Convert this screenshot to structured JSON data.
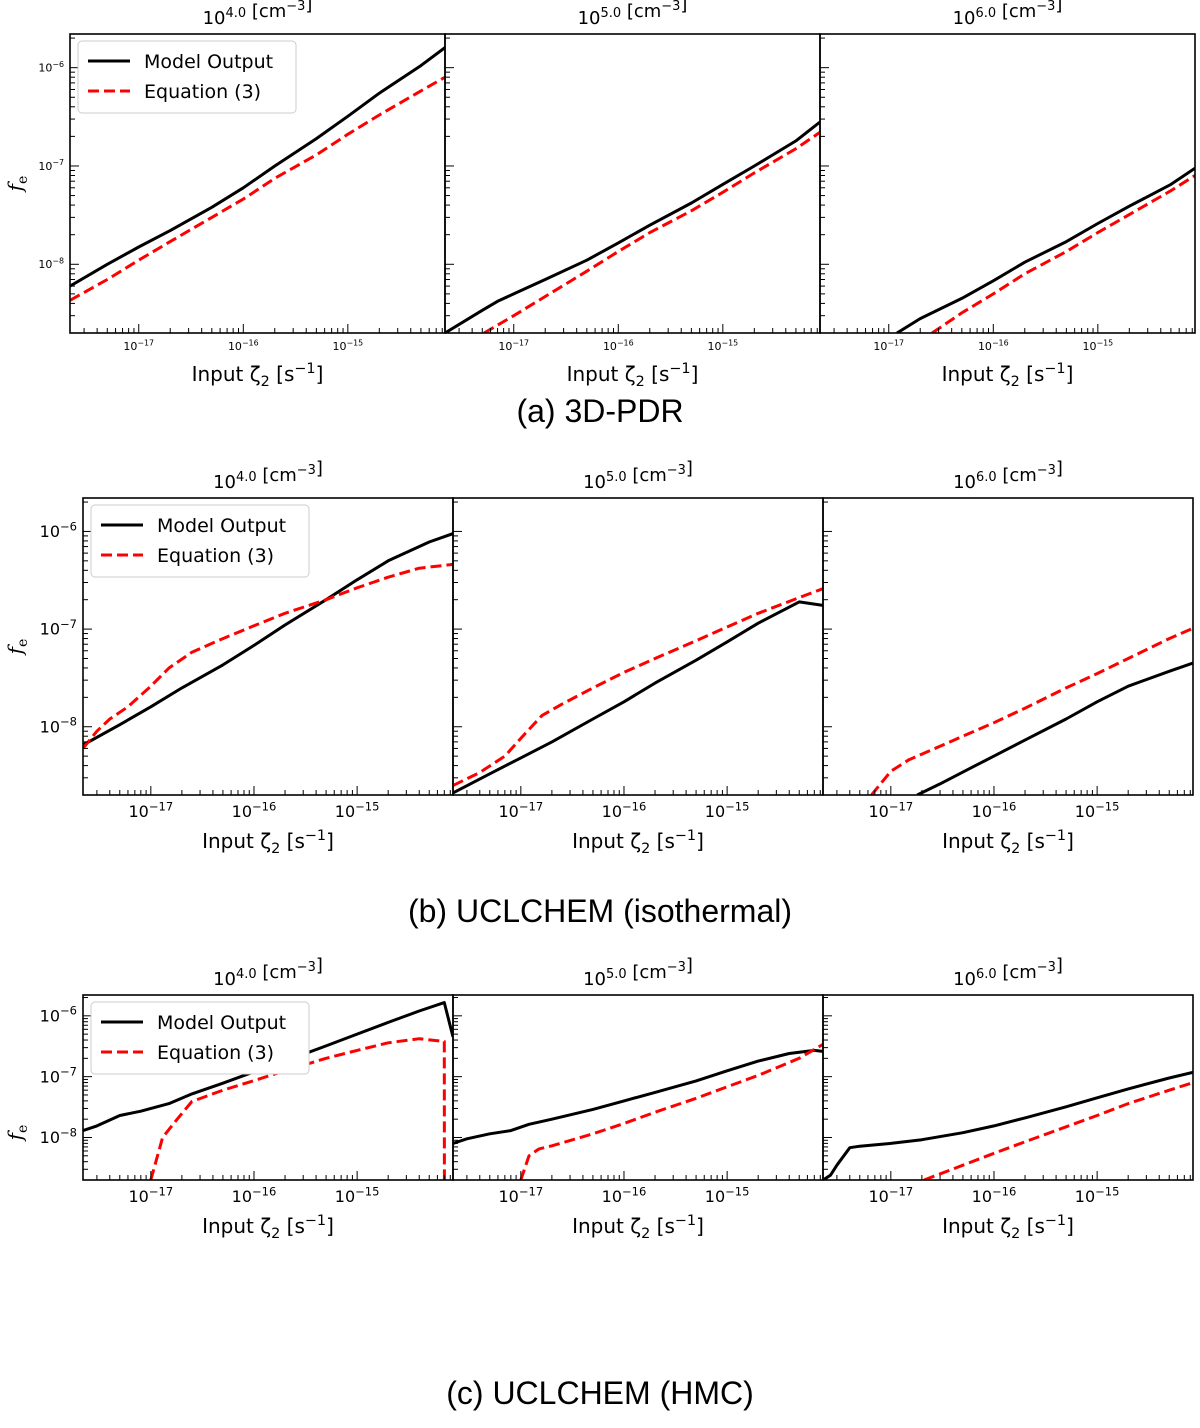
{
  "figure": {
    "captions": [
      "(a) 3D-PDR",
      "(b) UCLCHEM (isothermal)",
      "(c) UCLCHEM (HMC)"
    ]
  },
  "chart_data": [
    {
      "type": "line",
      "group": "(a) 3D-PDR",
      "panels": [
        {
          "title": "10^4.0 [cm^-3]",
          "xlabel": "Input ζ2 [s^-1]",
          "ylabel": "f_e",
          "xscale": "log",
          "yscale": "log",
          "xlim": [
            2.2e-18,
            8.5e-15
          ],
          "ylim": [
            2e-09,
            2.2e-06
          ],
          "x_tick_labels": [
            "10^-17",
            "10^-16",
            "10^-15"
          ],
          "y_tick_labels": [
            "10^-8",
            "10^-7",
            "10^-6"
          ],
          "legend": "upper left",
          "series": [
            {
              "name": "Model Output",
              "color": "#000000",
              "style": "solid",
              "x": [
                2.2e-18,
                5e-18,
                1e-17,
                2e-17,
                5e-17,
                1e-16,
                2e-16,
                5e-16,
                1e-15,
                2e-15,
                5e-15,
                8.5e-15
              ],
              "y": [
                6e-09,
                1e-08,
                1.5e-08,
                2.2e-08,
                3.8e-08,
                6e-08,
                1e-07,
                1.9e-07,
                3.2e-07,
                5.5e-07,
                1.05e-06,
                1.6e-06
              ]
            },
            {
              "name": "Equation (3)",
              "color": "#ff0000",
              "style": "dashed",
              "x": [
                2.2e-18,
                5e-18,
                1e-17,
                2e-17,
                5e-17,
                1e-16,
                2e-16,
                5e-16,
                1e-15,
                2e-15,
                5e-15,
                8.5e-15
              ],
              "y": [
                4.3e-09,
                7e-09,
                1.1e-08,
                1.7e-08,
                3e-08,
                4.6e-08,
                7.5e-08,
                1.3e-07,
                2.1e-07,
                3.3e-07,
                5.8e-07,
                8e-07
              ]
            }
          ]
        },
        {
          "title": "10^5.0 [cm^-3]",
          "xlabel": "Input ζ2 [s^-1]",
          "ylabel": "",
          "xscale": "log",
          "yscale": "log",
          "xlim": [
            2.2e-18,
            8.5e-15
          ],
          "ylim": [
            2e-09,
            2.2e-06
          ],
          "x_tick_labels": [
            "10^-17",
            "10^-16",
            "10^-15"
          ],
          "y_tick_labels": [],
          "legend": "none",
          "series": [
            {
              "name": "Model Output",
              "color": "#000000",
              "style": "solid",
              "x": [
                2.2e-18,
                5e-18,
                7e-18,
                1e-17,
                2e-17,
                5e-17,
                1e-16,
                2e-16,
                5e-16,
                1e-15,
                2e-15,
                5e-15,
                8.5e-15
              ],
              "y": [
                2e-09,
                3.4e-09,
                4.2e-09,
                5e-09,
                7e-09,
                1.1e-08,
                1.65e-08,
                2.5e-08,
                4.2e-08,
                6.5e-08,
                1e-07,
                1.8e-07,
                2.8e-07
              ]
            },
            {
              "name": "Equation (3)",
              "color": "#ff0000",
              "style": "dashed",
              "x": [
                5.2e-18,
                1e-17,
                2e-17,
                5e-17,
                1e-16,
                2e-16,
                5e-16,
                1e-15,
                2e-15,
                5e-15,
                8.5e-15
              ],
              "y": [
                2e-09,
                3e-09,
                4.7e-09,
                8.5e-09,
                1.35e-08,
                2.1e-08,
                3.5e-08,
                5.4e-08,
                8.5e-08,
                1.5e-07,
                2.2e-07
              ]
            }
          ]
        },
        {
          "title": "10^6.0 [cm^-3]",
          "xlabel": "Input ζ2 [s^-1]",
          "ylabel": "",
          "xscale": "log",
          "yscale": "log",
          "xlim": [
            2.2e-18,
            8.5e-15
          ],
          "ylim": [
            2e-09,
            2.2e-06
          ],
          "x_tick_labels": [
            "10^-17",
            "10^-16",
            "10^-15"
          ],
          "y_tick_labels": [],
          "legend": "none",
          "series": [
            {
              "name": "Model Output",
              "color": "#000000",
              "style": "solid",
              "x": [
                1.2e-17,
                2e-17,
                5e-17,
                1e-16,
                2e-16,
                5e-16,
                1e-15,
                2e-15,
                5e-15,
                8.5e-15
              ],
              "y": [
                2e-09,
                2.8e-09,
                4.5e-09,
                6.8e-09,
                1.05e-08,
                1.7e-08,
                2.6e-08,
                3.9e-08,
                6.5e-08,
                9.5e-08
              ]
            },
            {
              "name": "Equation (3)",
              "color": "#ff0000",
              "style": "dashed",
              "x": [
                2.6e-17,
                5e-17,
                1e-16,
                2e-16,
                5e-16,
                1e-15,
                2e-15,
                5e-15,
                8.5e-15
              ],
              "y": [
                2e-09,
                3.2e-09,
                5e-09,
                8e-09,
                1.35e-08,
                2.1e-08,
                3.2e-08,
                5.6e-08,
                8e-08
              ]
            }
          ]
        }
      ]
    },
    {
      "type": "line",
      "group": "(b) UCLCHEM (isothermal)",
      "panels": [
        {
          "title": "10^4.0 [cm^-3]",
          "xlabel": "Input ζ2 [s^-1]",
          "ylabel": "f_e",
          "xscale": "log",
          "yscale": "log",
          "xlim": [
            2.2e-18,
            8.5e-15
          ],
          "ylim": [
            2e-09,
            2.2e-06
          ],
          "x_tick_labels": [
            "10^-17",
            "10^-16",
            "10^-15"
          ],
          "y_tick_labels": [
            "10^-8",
            "10^-7",
            "10^-6"
          ],
          "legend": "upper left",
          "series": [
            {
              "name": "Model Output",
              "color": "#000000",
              "style": "solid",
              "x": [
                2.2e-18,
                5e-18,
                1e-17,
                2e-17,
                5e-17,
                1e-16,
                2e-16,
                5e-16,
                1e-15,
                2e-15,
                5e-15,
                8.5e-15
              ],
              "y": [
                6.5e-09,
                1.05e-08,
                1.6e-08,
                2.5e-08,
                4.3e-08,
                6.8e-08,
                1.1e-07,
                2e-07,
                3.2e-07,
                5e-07,
                7.8e-07,
                9.5e-07
              ]
            },
            {
              "name": "Equation (3)",
              "color": "#ff0000",
              "style": "dashed",
              "x": [
                2.2e-18,
                3e-18,
                4e-18,
                6e-18,
                1e-17,
                1.5e-17,
                2.5e-17,
                5e-17,
                1e-16,
                2e-16,
                5e-16,
                1e-15,
                2e-15,
                4e-15,
                8.5e-15
              ],
              "y": [
                6e-09,
                9e-09,
                1.2e-08,
                1.6e-08,
                2.6e-08,
                4e-08,
                5.8e-08,
                8e-08,
                1.08e-07,
                1.45e-07,
                2e-07,
                2.65e-07,
                3.4e-07,
                4.2e-07,
                4.6e-07
              ]
            }
          ]
        },
        {
          "title": "10^5.0 [cm^-3]",
          "xlabel": "Input ζ2 [s^-1]",
          "ylabel": "",
          "xscale": "log",
          "yscale": "log",
          "xlim": [
            2.2e-18,
            8.5e-15
          ],
          "ylim": [
            2e-09,
            2.2e-06
          ],
          "x_tick_labels": [
            "10^-17",
            "10^-16",
            "10^-15"
          ],
          "y_tick_labels": [],
          "legend": "none",
          "series": [
            {
              "name": "Model Output",
              "color": "#000000",
              "style": "solid",
              "x": [
                2.2e-18,
                5e-18,
                1e-17,
                2e-17,
                5e-17,
                1e-16,
                2e-16,
                5e-16,
                1e-15,
                2e-15,
                5e-15,
                8.5e-15
              ],
              "y": [
                2.1e-09,
                3.3e-09,
                4.8e-09,
                7e-09,
                1.2e-08,
                1.8e-08,
                2.8e-08,
                4.8e-08,
                7.4e-08,
                1.15e-07,
                1.9e-07,
                1.75e-07
              ]
            },
            {
              "name": "Equation (3)",
              "color": "#ff0000",
              "style": "dashed",
              "x": [
                2.2e-18,
                4e-18,
                7e-18,
                1.1e-17,
                1.6e-17,
                2.5e-17,
                5e-17,
                1e-16,
                2e-16,
                5e-16,
                1e-15,
                2e-15,
                5e-15,
                8.5e-15
              ],
              "y": [
                2.5e-09,
                3.4e-09,
                5e-09,
                8.5e-09,
                1.3e-08,
                1.7e-08,
                2.5e-08,
                3.6e-08,
                5e-08,
                7.6e-08,
                1.05e-07,
                1.45e-07,
                2.1e-07,
                2.6e-07
              ]
            }
          ]
        },
        {
          "title": "10^6.0 [cm^-3]",
          "xlabel": "Input ζ2 [s^-1]",
          "ylabel": "",
          "xscale": "log",
          "yscale": "log",
          "xlim": [
            2.2e-18,
            8.5e-15
          ],
          "ylim": [
            2e-09,
            2.2e-06
          ],
          "x_tick_labels": [
            "10^-17",
            "10^-16",
            "10^-15"
          ],
          "y_tick_labels": [],
          "legend": "none",
          "series": [
            {
              "name": "Model Output",
              "color": "#000000",
              "style": "solid",
              "x": [
                1.8e-17,
                3e-17,
                6e-17,
                1e-16,
                2e-16,
                5e-16,
                1e-15,
                2e-15,
                5e-15,
                8.5e-15
              ],
              "y": [
                2e-09,
                2.6e-09,
                3.8e-09,
                5e-09,
                7.3e-09,
                1.2e-08,
                1.8e-08,
                2.6e-08,
                3.7e-08,
                4.5e-08
              ]
            },
            {
              "name": "Equation (3)",
              "color": "#ff0000",
              "style": "dashed",
              "x": [
                6.5e-18,
                1e-17,
                1.5e-17,
                2.5e-17,
                5e-17,
                1e-16,
                2e-16,
                5e-16,
                1e-15,
                2e-15,
                5e-15,
                8.5e-15
              ],
              "y": [
                2e-09,
                3.5e-09,
                4.6e-09,
                5.8e-09,
                8e-09,
                1.1e-08,
                1.55e-08,
                2.5e-08,
                3.5e-08,
                5e-08,
                8e-08,
                1.02e-07
              ]
            }
          ]
        }
      ]
    },
    {
      "type": "line",
      "group": "(c) UCLCHEM (HMC)",
      "panels": [
        {
          "title": "10^4.0 [cm^-3]",
          "xlabel": "Input ζ2 [s^-1]",
          "ylabel": "f_e",
          "xscale": "log",
          "yscale": "log",
          "xlim": [
            2.2e-18,
            8.5e-15
          ],
          "ylim": [
            2e-09,
            2.2e-06
          ],
          "x_tick_labels": [
            "10^-17",
            "10^-16",
            "10^-15"
          ],
          "y_tick_labels": [
            "10^-8",
            "10^-7",
            "10^-6"
          ],
          "legend": "upper left",
          "series": [
            {
              "name": "Model Output",
              "color": "#000000",
              "style": "solid",
              "x": [
                2.2e-18,
                3e-18,
                5e-18,
                8e-18,
                1.5e-17,
                2.5e-17,
                5e-17,
                1e-16,
                2e-16,
                5e-16,
                1e-15,
                2e-15,
                4e-15,
                7e-15,
                8.5e-15
              ],
              "y": [
                1.3e-08,
                1.55e-08,
                2.3e-08,
                2.7e-08,
                3.6e-08,
                5.2e-08,
                7.8e-08,
                1.2e-07,
                1.8e-07,
                3.2e-07,
                5e-07,
                7.8e-07,
                1.2e-06,
                1.65e-06,
                4.5e-07
              ]
            },
            {
              "name": "Equation (3)",
              "color": "#ff0000",
              "style": "dashed",
              "x": [
                1e-17,
                1.3e-17,
                1.8e-17,
                2.5e-17,
                5e-17,
                1e-16,
                2e-16,
                5e-16,
                1e-15,
                2e-15,
                4e-15,
                6e-15,
                7e-15,
                7.01e-15
              ],
              "y": [
                2e-09,
                1e-08,
                2e-08,
                3.9e-08,
                6e-08,
                8.6e-08,
                1.25e-07,
                2e-07,
                2.7e-07,
                3.6e-07,
                4.2e-07,
                3.9e-07,
                3.8e-07,
                2e-09
              ]
            }
          ]
        },
        {
          "title": "10^5.0 [cm^-3]",
          "xlabel": "Input ζ2 [s^-1]",
          "ylabel": "",
          "xscale": "log",
          "yscale": "log",
          "xlim": [
            2.2e-18,
            8.5e-15
          ],
          "ylim": [
            2e-09,
            2.2e-06
          ],
          "x_tick_labels": [
            "10^-17",
            "10^-16",
            "10^-15"
          ],
          "y_tick_labels": [],
          "legend": "none",
          "series": [
            {
              "name": "Model Output",
              "color": "#000000",
              "style": "solid",
              "x": [
                2.2e-18,
                3e-18,
                5e-18,
                8e-18,
                1.2e-17,
                2e-17,
                5e-17,
                1e-16,
                2e-16,
                5e-16,
                1e-15,
                2e-15,
                4e-15,
                7e-15,
                8.5e-15
              ],
              "y": [
                8e-09,
                9.5e-09,
                1.15e-08,
                1.3e-08,
                1.65e-08,
                2e-08,
                2.9e-08,
                4e-08,
                5.5e-08,
                8.5e-08,
                1.25e-07,
                1.8e-07,
                2.4e-07,
                2.7e-07,
                2.6e-07
              ]
            },
            {
              "name": "Equation (3)",
              "color": "#ff0000",
              "style": "dashed",
              "x": [
                1e-17,
                1.2e-17,
                1.5e-17,
                2e-17,
                5e-17,
                1e-16,
                2e-16,
                5e-16,
                1e-15,
                2e-15,
                5e-15,
                8.5e-15
              ],
              "y": [
                2e-09,
                5e-09,
                6.5e-09,
                7.3e-09,
                1.15e-08,
                1.7e-08,
                2.6e-08,
                4.4e-08,
                6.8e-08,
                1.05e-07,
                2e-07,
                3.4e-07
              ]
            }
          ]
        },
        {
          "title": "10^6.0 [cm^-3]",
          "xlabel": "Input ζ2 [s^-1]",
          "ylabel": "",
          "xscale": "log",
          "yscale": "log",
          "xlim": [
            2.2e-18,
            8.5e-15
          ],
          "ylim": [
            2e-09,
            2.2e-06
          ],
          "x_tick_labels": [
            "10^-17",
            "10^-16",
            "10^-15"
          ],
          "y_tick_labels": [],
          "legend": "none",
          "series": [
            {
              "name": "Model Output",
              "color": "#000000",
              "style": "solid",
              "x": [
                2.2e-18,
                2.6e-18,
                3e-18,
                4e-18,
                5e-18,
                1e-17,
                2e-17,
                5e-17,
                1e-16,
                2e-16,
                5e-16,
                1e-15,
                2e-15,
                5e-15,
                8.5e-15
              ],
              "y": [
                2e-09,
                2.4e-09,
                3.5e-09,
                6.8e-09,
                7.2e-09,
                8e-09,
                9.2e-09,
                1.2e-08,
                1.55e-08,
                2.1e-08,
                3.2e-08,
                4.5e-08,
                6.3e-08,
                9.5e-08,
                1.18e-07
              ]
            },
            {
              "name": "Equation (3)",
              "color": "#ff0000",
              "style": "dashed",
              "x": [
                2.1e-17,
                5e-17,
                1e-16,
                2e-16,
                5e-16,
                1e-15,
                2e-15,
                5e-15,
                8.5e-15
              ],
              "y": [
                2e-09,
                3.5e-09,
                5.5e-09,
                8.5e-09,
                1.5e-08,
                2.3e-08,
                3.6e-08,
                6e-08,
                8e-08
              ]
            }
          ]
        }
      ]
    }
  ]
}
